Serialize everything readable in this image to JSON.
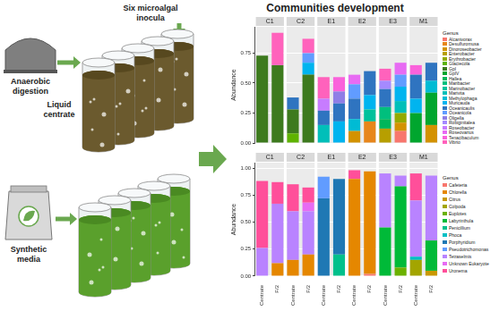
{
  "diagram": {
    "digester": "Anaerobic digestion",
    "centrate": "Liquid centrate",
    "media": "Synthetic media",
    "inocula": "Six microalgal inocula"
  },
  "title": "Communities development",
  "chart_data": [
    {
      "type": "bar",
      "stacked": true,
      "grid": true,
      "legend": "right",
      "legend_title": "Genus",
      "tick_labels": "y",
      "ylabel": "Abundance",
      "facets": [
        "C1",
        "C2",
        "E1",
        "E2",
        "E3",
        "M1"
      ],
      "categories": [
        "Centrate",
        "F/2",
        "Centrate",
        "F/2",
        "Centrate",
        "F/2",
        "Centrate",
        "F/2",
        "Centrate",
        "F/2",
        "Centrate",
        "F/2"
      ],
      "ylim": [
        0,
        0.97
      ],
      "yticks": [
        {
          "value": 0,
          "label": "0.00"
        },
        {
          "value": 0.25,
          "label": "0.25"
        },
        {
          "value": 0.5,
          "label": "0.50"
        },
        {
          "value": 0.75,
          "label": "0.75"
        }
      ],
      "series": [
        {
          "name": "Alcanivorax",
          "color": "#f8766d",
          "values": [
            0,
            0,
            0,
            0,
            0,
            0,
            0,
            0,
            0,
            0.1,
            0,
            0
          ]
        },
        {
          "name": "Desulfuromusa",
          "color": "#e7861b",
          "values": [
            0,
            0,
            0,
            0,
            0,
            0,
            0,
            0.18,
            0,
            0,
            0,
            0
          ]
        },
        {
          "name": "Dinoroseobacter",
          "color": "#d39200",
          "values": [
            0,
            0,
            0,
            0,
            0,
            0,
            0.1,
            0,
            0,
            0.07,
            0,
            0.15
          ]
        },
        {
          "name": "Enterobacter",
          "color": "#b79f00",
          "values": [
            0,
            0,
            0,
            0,
            0,
            0,
            0,
            0,
            0.12,
            0,
            0,
            0
          ]
        },
        {
          "name": "Erythrobacter",
          "color": "#93aa00",
          "values": [
            0,
            0,
            0,
            0,
            0,
            0,
            0,
            0,
            0,
            0.08,
            0,
            0
          ]
        },
        {
          "name": "Glaciecola",
          "color": "#5eb300",
          "values": [
            0,
            0,
            0.08,
            0,
            0,
            0,
            0,
            0,
            0,
            0,
            0,
            0
          ]
        },
        {
          "name": "GpI",
          "color": "#3d7a1e",
          "values": [
            0.73,
            0.65,
            0.2,
            0.57,
            0,
            0,
            0,
            0,
            0,
            0,
            0,
            0
          ]
        },
        {
          "name": "GpIV",
          "color": "#00a62e",
          "values": [
            0,
            0,
            0,
            0,
            0,
            0,
            0,
            0,
            0,
            0,
            0.25,
            0.27
          ]
        },
        {
          "name": "Hallea",
          "color": "#00b65a",
          "values": [
            0,
            0,
            0,
            0,
            0,
            0,
            0,
            0,
            0.08,
            0,
            0,
            0
          ]
        },
        {
          "name": "Maribacter",
          "color": "#00bf7d",
          "values": [
            0,
            0,
            0,
            0,
            0,
            0,
            0,
            0,
            0.1,
            0,
            0,
            0
          ]
        },
        {
          "name": "Marinobacter",
          "color": "#00c19c",
          "values": [
            0,
            0,
            0,
            0,
            0,
            0,
            0,
            0.1,
            0,
            0,
            0,
            0
          ]
        },
        {
          "name": "Marivita",
          "color": "#00bfb9",
          "values": [
            0,
            0,
            0,
            0,
            0.15,
            0,
            0,
            0,
            0,
            0.1,
            0,
            0
          ]
        },
        {
          "name": "Methylophaga",
          "color": "#00bbd4",
          "values": [
            0,
            0,
            0,
            0,
            0,
            0,
            0.1,
            0,
            0,
            0,
            0,
            0.1
          ]
        },
        {
          "name": "Muricauda",
          "color": "#00b4ef",
          "values": [
            0,
            0,
            0,
            0.1,
            0,
            0.18,
            0,
            0.12,
            0,
            0.12,
            0.12,
            0
          ]
        },
        {
          "name": "Oceanicaulis",
          "color": "#2f74c0",
          "values": [
            0,
            0,
            0.1,
            0,
            0.12,
            0.15,
            0.17,
            0.2,
            0.15,
            0,
            0.2,
            0.15
          ]
        },
        {
          "name": "Oceanicola",
          "color": "#619cff",
          "values": [
            0,
            0,
            0,
            0.08,
            0,
            0,
            0.12,
            0,
            0,
            0.1,
            0,
            0
          ]
        },
        {
          "name": "Oligella",
          "color": "#8f7ee6",
          "values": [
            0,
            0,
            0,
            0,
            0,
            0.1,
            0,
            0,
            0,
            0,
            0,
            0
          ]
        },
        {
          "name": "Robiginitalea",
          "color": "#a58aff",
          "values": [
            0,
            0,
            0,
            0,
            0,
            0,
            0,
            0,
            0.07,
            0,
            0,
            0
          ]
        },
        {
          "name": "Roseobacter",
          "color": "#c77cff",
          "values": [
            0,
            0,
            0,
            0,
            0.1,
            0,
            0,
            0,
            0,
            0,
            0,
            0
          ]
        },
        {
          "name": "Roseovarius",
          "color": "#e76bf3",
          "values": [
            0,
            0,
            0,
            0,
            0,
            0,
            0.08,
            0,
            0,
            0.1,
            0,
            0
          ]
        },
        {
          "name": "Tenacibaculum",
          "color": "#fa62db",
          "values": [
            0,
            0,
            0,
            0,
            0,
            0.12,
            0,
            0,
            0,
            0,
            0.08,
            0
          ]
        },
        {
          "name": "Vibrio",
          "color": "#ff62bc",
          "values": [
            0,
            0.27,
            0,
            0.12,
            0.18,
            0,
            0,
            0,
            0.1,
            0,
            0,
            0
          ]
        }
      ]
    },
    {
      "type": "bar",
      "stacked": true,
      "grid": true,
      "legend": "right",
      "legend_title": "Genus",
      "tick_labels": true,
      "ylabel": "Abundance",
      "facets": [
        "C1",
        "C2",
        "E1",
        "E2",
        "E3",
        "M1"
      ],
      "categories": [
        "Centrate",
        "F/2",
        "Centrate",
        "F/2",
        "Centrate",
        "F/2",
        "Centrate",
        "F/2",
        "Centrate",
        "F/2",
        "Centrate",
        "F/2"
      ],
      "ylim": [
        0,
        1.05
      ],
      "yticks": [
        {
          "value": 0,
          "label": "0.00"
        },
        {
          "value": 0.25,
          "label": "0.25"
        },
        {
          "value": 0.5,
          "label": "0.50"
        },
        {
          "value": 0.75,
          "label": "0.75"
        },
        {
          "value": 1,
          "label": "1.00"
        }
      ],
      "series": [
        {
          "name": "Cafeteria",
          "color": "#f8766d",
          "values": [
            0,
            0,
            0,
            0,
            0,
            0,
            0,
            0.02,
            0,
            0,
            0,
            0
          ]
        },
        {
          "name": "Chlorella",
          "color": "#e58700",
          "values": [
            0,
            0.12,
            0.15,
            0.2,
            0,
            0,
            0.9,
            0.95,
            0,
            0,
            0,
            0
          ]
        },
        {
          "name": "Citrus",
          "color": "#c99800",
          "values": [
            0,
            0,
            0,
            0,
            0,
            0,
            0,
            0,
            0,
            0,
            0,
            0.05
          ]
        },
        {
          "name": "Colpoda",
          "color": "#a3a500",
          "values": [
            0,
            0,
            0,
            0,
            0,
            0,
            0,
            0,
            0,
            0,
            0.15,
            0
          ]
        },
        {
          "name": "Euplotes",
          "color": "#6bb100",
          "values": [
            0,
            0,
            0,
            0,
            0,
            0,
            0,
            0,
            0,
            0.08,
            0,
            0
          ]
        },
        {
          "name": "Labyrinthula",
          "color": "#00ba38",
          "values": [
            0,
            0,
            0,
            0,
            0,
            0,
            0,
            0,
            0.45,
            0.75,
            0,
            0.28
          ]
        },
        {
          "name": "Penicillium",
          "color": "#00c08b",
          "values": [
            0,
            0,
            0,
            0,
            0,
            0.2,
            0,
            0,
            0,
            0,
            0,
            0
          ]
        },
        {
          "name": "Phoca",
          "color": "#00bfc4",
          "values": [
            0,
            0,
            0,
            0,
            0,
            0,
            0,
            0,
            0,
            0,
            0.03,
            0
          ]
        },
        {
          "name": "Porphyridium",
          "color": "#1f78b4",
          "values": [
            0,
            0,
            0,
            0,
            0.72,
            0.7,
            0,
            0,
            0,
            0,
            0,
            0
          ]
        },
        {
          "name": "Pseudotrichomonas",
          "color": "#619cff",
          "values": [
            0,
            0,
            0,
            0,
            0.2,
            0,
            0,
            0,
            0,
            0,
            0,
            0
          ]
        },
        {
          "name": "Tetraselmis",
          "color": "#b983ff",
          "values": [
            0.26,
            0.55,
            0.45,
            0.4,
            0,
            0,
            0,
            0,
            0.5,
            0.1,
            0.52,
            0.6
          ]
        },
        {
          "name": "Unknown Eukaryote",
          "color": "#e76bf3",
          "values": [
            0,
            0,
            0,
            0.08,
            0,
            0,
            0,
            0,
            0,
            0,
            0,
            0
          ]
        },
        {
          "name": "Uronema",
          "color": "#ff4f9a",
          "values": [
            0.62,
            0.2,
            0.25,
            0.14,
            0,
            0,
            0.08,
            0,
            0,
            0,
            0.25,
            0
          ]
        }
      ]
    }
  ]
}
